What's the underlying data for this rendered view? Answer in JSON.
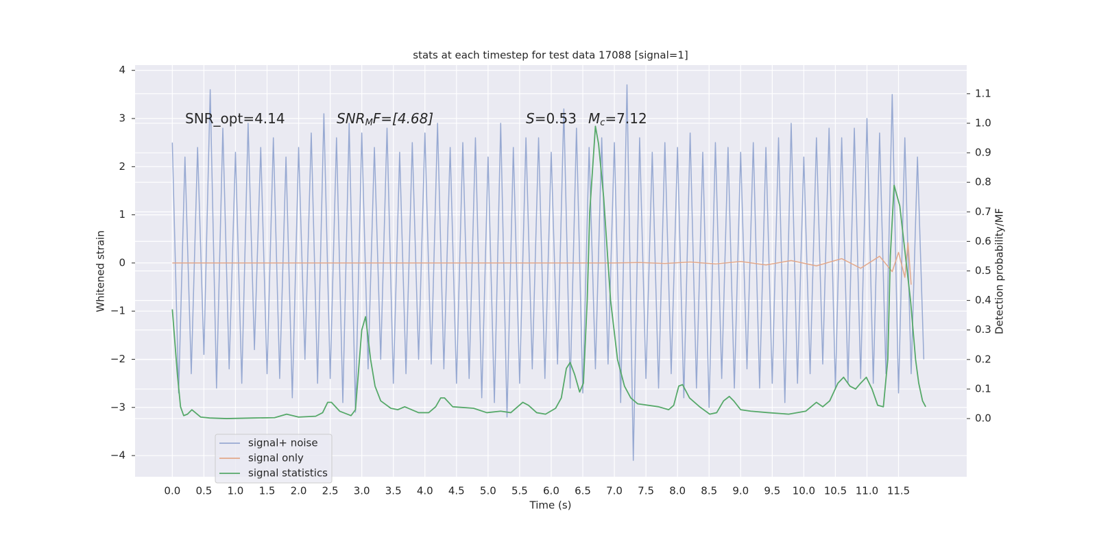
{
  "chart_data": {
    "type": "line",
    "title": "stats at each timestep for test data 17088 [signal=1]",
    "x_label": "Time (s)",
    "y_label": "Whitened strain",
    "y2_label": "Detection probability/MF",
    "annotations": [
      [
        "SNR_opt=4.14"
      ],
      [
        "SNR",
        "M",
        "F=[4.68]"
      ],
      [
        "S",
        "=0.53"
      ],
      [
        "M",
        "c",
        "=7.12"
      ]
    ],
    "xlim": [
      -0.59,
      12.58
    ],
    "ylim": [
      -4.44,
      4.11
    ],
    "y2lim": [
      -0.197,
      1.197
    ],
    "xticks": [
      {
        "value": 0,
        "label": "0.0"
      },
      0.5,
      {
        "value": 1,
        "label": "1.0"
      },
      1.5,
      {
        "value": 2,
        "label": "2.0"
      },
      2.5,
      {
        "value": 3,
        "label": "3.0"
      },
      3.5,
      {
        "value": 4,
        "label": "4.0"
      },
      4.5,
      {
        "value": 5,
        "label": "5.0"
      },
      5.5,
      {
        "value": 6,
        "label": "6.0"
      },
      6.5,
      {
        "value": 7,
        "label": "7.0"
      },
      7.5,
      {
        "value": 8,
        "label": "8.0"
      },
      8.5,
      {
        "value": 9,
        "label": "9.0"
      },
      9.5,
      {
        "value": 10,
        "label": "10.0"
      },
      10.5,
      {
        "value": 11,
        "label": "11.0"
      },
      11.5
    ],
    "yticks": [
      {
        "value": -4,
        "label": "−4"
      },
      {
        "value": -3,
        "label": "−3"
      },
      {
        "value": -2,
        "label": "−2"
      },
      {
        "value": -1,
        "label": "−1"
      },
      0,
      1,
      2,
      3,
      4
    ],
    "y2ticks": [
      {
        "value": 0,
        "label": "0.0"
      },
      0.1,
      0.2,
      0.3,
      0.4,
      0.5,
      0.6,
      0.7,
      0.8,
      0.9,
      {
        "value": 1,
        "label": "1.0"
      },
      1.1
    ],
    "grid": true,
    "legend": "lower left",
    "series": [
      {
        "name": "signal+ noise",
        "color": "#97a9d2",
        "x": [
          0.0,
          0.1,
          0.2,
          0.3,
          0.4,
          0.5,
          0.6,
          0.7,
          0.8,
          0.9,
          1.0,
          1.1,
          1.2,
          1.3,
          1.4,
          1.5,
          1.6,
          1.7,
          1.8,
          1.9,
          2.0,
          2.1,
          2.2,
          2.3,
          2.4,
          2.5,
          2.6,
          2.7,
          2.8,
          2.9,
          3.0,
          3.1,
          3.2,
          3.3,
          3.4,
          3.5,
          3.6,
          3.7,
          3.8,
          3.9,
          4.0,
          4.1,
          4.2,
          4.3,
          4.4,
          4.5,
          4.6,
          4.7,
          4.8,
          4.9,
          5.0,
          5.1,
          5.2,
          5.3,
          5.4,
          5.5,
          5.6,
          5.7,
          5.8,
          5.9,
          6.0,
          6.1,
          6.2,
          6.3,
          6.4,
          6.5,
          6.6,
          6.7,
          6.8,
          6.9,
          7.0,
          7.1,
          7.2,
          7.3,
          7.4,
          7.5,
          7.6,
          7.7,
          7.8,
          7.9,
          8.0,
          8.1,
          8.2,
          8.3,
          8.4,
          8.5,
          8.6,
          8.7,
          8.8,
          8.9,
          9.0,
          9.1,
          9.2,
          9.3,
          9.4,
          9.5,
          9.6,
          9.7,
          9.8,
          9.9,
          10.0,
          10.1,
          10.2,
          10.3,
          10.4,
          10.5,
          10.6,
          10.7,
          10.8,
          10.9,
          11.0,
          11.1,
          11.2,
          11.3,
          11.4,
          11.5,
          11.6,
          11.7,
          11.8,
          11.9
        ],
        "values": [
          2.5,
          -2.7,
          2.2,
          -2.3,
          2.4,
          -1.9,
          3.6,
          -2.6,
          2.8,
          -2.2,
          2.3,
          -2.5,
          2.9,
          -1.8,
          2.4,
          -2.3,
          2.6,
          -2.4,
          2.2,
          -2.8,
          2.4,
          -2.0,
          2.7,
          -2.5,
          3.1,
          -2.4,
          2.6,
          -2.9,
          2.9,
          -3.1,
          2.7,
          -2.2,
          2.4,
          -2.0,
          2.8,
          -2.5,
          2.3,
          -2.3,
          2.5,
          -2.0,
          2.7,
          -2.1,
          2.9,
          -2.2,
          2.4,
          -2.5,
          2.5,
          -2.4,
          2.6,
          -2.8,
          2.2,
          -2.9,
          2.9,
          -3.2,
          2.4,
          -2.5,
          2.6,
          -2.2,
          2.6,
          -2.4,
          2.3,
          -2.1,
          3.2,
          -2.6,
          2.8,
          -2.7,
          2.4,
          -2.2,
          2.6,
          -2.1,
          2.5,
          -2.9,
          3.7,
          -4.1,
          2.6,
          -2.4,
          2.3,
          -2.6,
          2.5,
          -2.3,
          2.4,
          -2.8,
          2.7,
          -2.6,
          2.3,
          -3.0,
          2.5,
          -2.4,
          2.4,
          -2.6,
          2.3,
          -2.2,
          2.5,
          -2.6,
          2.4,
          -2.5,
          2.6,
          -2.9,
          2.9,
          -2.5,
          2.2,
          -2.3,
          2.6,
          -2.1,
          2.8,
          -2.6,
          2.6,
          -2.5,
          2.8,
          -2.4,
          3.0,
          -2.5,
          2.7,
          -2.3,
          3.5,
          -2.7,
          2.6,
          -2.3,
          2.2,
          -2.0
        ]
      },
      {
        "name": "signal only",
        "color": "#e3a88a",
        "x": [
          0,
          7.0,
          7.4,
          7.8,
          8.2,
          8.6,
          9.0,
          9.4,
          9.8,
          10.2,
          10.6,
          10.9,
          11.2,
          11.4,
          11.5,
          11.6,
          11.65,
          11.7
        ],
        "values": [
          0,
          0,
          0.01,
          -0.01,
          0.02,
          -0.02,
          0.03,
          -0.04,
          0.05,
          -0.06,
          0.09,
          -0.11,
          0.14,
          -0.18,
          0.22,
          -0.3,
          0.42,
          -0.45
        ]
      },
      {
        "name": "signal statistics",
        "color": "#55a868",
        "axis": "y2",
        "x": [
          0.0,
          0.08,
          0.13,
          0.18,
          0.24,
          0.31,
          0.45,
          0.59,
          0.86,
          1.29,
          1.62,
          1.81,
          2.0,
          2.27,
          2.38,
          2.46,
          2.52,
          2.65,
          2.83,
          2.9,
          3.0,
          3.06,
          3.14,
          3.21,
          3.3,
          3.46,
          3.57,
          3.68,
          3.9,
          4.06,
          4.17,
          4.25,
          4.31,
          4.44,
          4.77,
          4.98,
          5.2,
          5.36,
          5.55,
          5.64,
          5.77,
          5.91,
          6.07,
          6.16,
          6.24,
          6.3,
          6.37,
          6.45,
          6.51,
          6.57,
          6.61,
          6.7,
          6.75,
          6.83,
          6.94,
          7.05,
          7.16,
          7.26,
          7.37,
          7.7,
          7.86,
          7.94,
          8.02,
          8.08,
          8.19,
          8.35,
          8.51,
          8.62,
          8.73,
          8.82,
          8.89,
          9.0,
          9.16,
          9.44,
          9.76,
          10.03,
          10.2,
          10.3,
          10.41,
          10.54,
          10.63,
          10.73,
          10.82,
          10.9,
          10.99,
          11.08,
          11.17,
          11.26,
          11.33,
          11.37,
          11.43,
          11.52,
          11.61,
          11.69,
          11.77,
          11.82,
          11.88,
          11.93
        ],
        "values": [
          0.37,
          0.15,
          0.04,
          0.01,
          0.015,
          0.03,
          0.005,
          0.002,
          0.0,
          0.002,
          0.003,
          0.015,
          0.005,
          0.008,
          0.02,
          0.055,
          0.055,
          0.025,
          0.01,
          0.03,
          0.3,
          0.345,
          0.2,
          0.11,
          0.06,
          0.035,
          0.03,
          0.04,
          0.02,
          0.02,
          0.04,
          0.07,
          0.07,
          0.04,
          0.035,
          0.02,
          0.025,
          0.02,
          0.055,
          0.045,
          0.02,
          0.015,
          0.035,
          0.07,
          0.17,
          0.19,
          0.15,
          0.09,
          0.12,
          0.4,
          0.7,
          0.99,
          0.93,
          0.75,
          0.4,
          0.2,
          0.11,
          0.07,
          0.05,
          0.04,
          0.03,
          0.045,
          0.11,
          0.115,
          0.07,
          0.04,
          0.015,
          0.02,
          0.06,
          0.075,
          0.06,
          0.03,
          0.025,
          0.02,
          0.015,
          0.025,
          0.055,
          0.04,
          0.06,
          0.12,
          0.14,
          0.11,
          0.1,
          0.12,
          0.14,
          0.1,
          0.045,
          0.04,
          0.2,
          0.55,
          0.79,
          0.72,
          0.55,
          0.4,
          0.2,
          0.12,
          0.06,
          0.04
        ]
      }
    ]
  }
}
